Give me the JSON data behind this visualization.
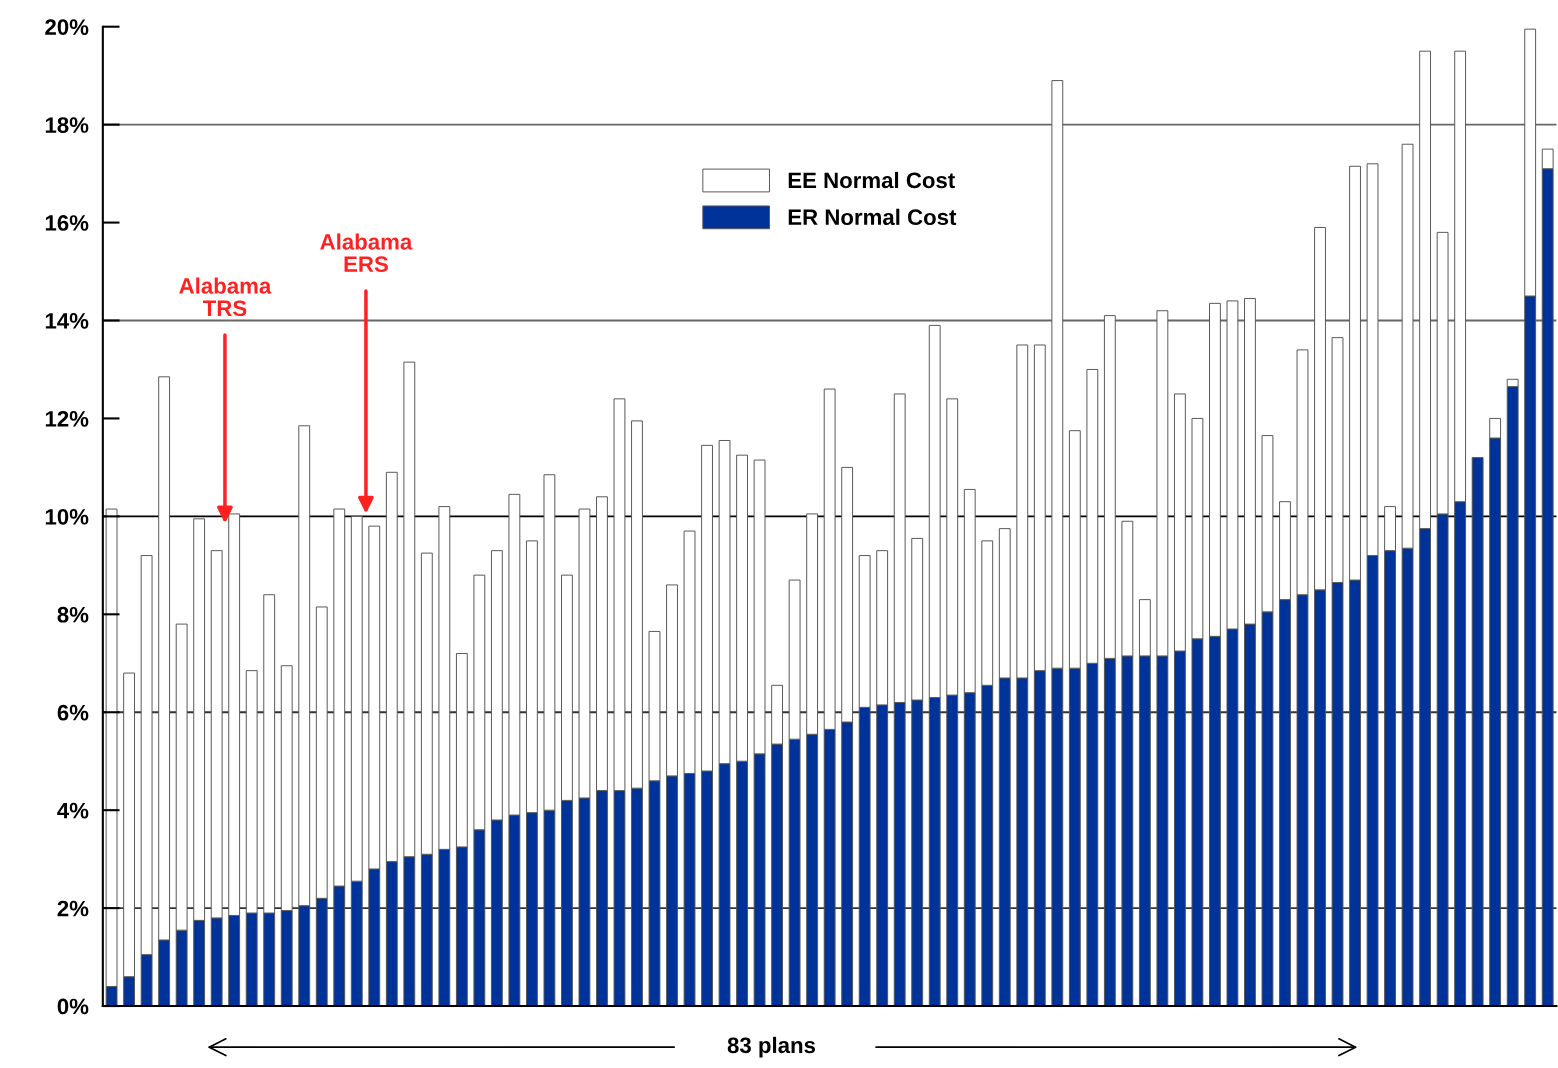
{
  "chart_data": {
    "type": "bar",
    "stacked": true,
    "relative": false,
    "categories": [
      null,
      null,
      null,
      null,
      null,
      null,
      null,
      null,
      null,
      null,
      null,
      null,
      null,
      null,
      null,
      null,
      null,
      null,
      null,
      null,
      null,
      null,
      null,
      null,
      null,
      null,
      null,
      null,
      null,
      null,
      null,
      null,
      null,
      null,
      null,
      null,
      null,
      null,
      null,
      null,
      null,
      null,
      null,
      null,
      null,
      null,
      null,
      null,
      null,
      null,
      null,
      null,
      null,
      null,
      null,
      null,
      null,
      null,
      null,
      null,
      null,
      null,
      null,
      null,
      null,
      null,
      null,
      null,
      null,
      null,
      null,
      null,
      null,
      null,
      null,
      null,
      null,
      null,
      null,
      null,
      null,
      null,
      null
    ],
    "series": [
      {
        "name": "ER Normal Cost",
        "color": "#003399",
        "values": [
          0.4,
          0.6,
          1.05,
          1.35,
          1.55,
          1.75,
          1.8,
          1.85,
          1.9,
          1.9,
          1.95,
          2.05,
          2.2,
          2.45,
          2.55,
          2.8,
          2.95,
          3.05,
          3.1,
          3.2,
          3.25,
          3.6,
          3.8,
          3.9,
          3.95,
          4.0,
          4.2,
          4.25,
          4.4,
          4.4,
          4.45,
          4.6,
          4.7,
          4.75,
          4.8,
          4.95,
          5.0,
          5.15,
          5.35,
          5.45,
          5.55,
          5.65,
          5.8,
          6.1,
          6.15,
          6.2,
          6.25,
          6.3,
          6.35,
          6.4,
          6.55,
          6.7,
          6.7,
          6.85,
          6.9,
          6.9,
          7.0,
          7.1,
          7.15,
          7.15,
          7.15,
          7.25,
          7.5,
          7.55,
          7.7,
          7.8,
          8.05,
          8.3,
          8.4,
          8.5,
          8.65,
          8.7,
          9.2,
          9.3,
          9.35,
          9.75,
          10.05,
          10.3,
          11.2,
          11.6,
          12.65,
          14.5,
          17.1
        ]
      },
      {
        "name": "EE Normal Cost",
        "color": "#ffffff",
        "values": [
          9.75,
          6.2,
          8.15,
          11.5,
          6.25,
          8.2,
          7.5,
          8.2,
          4.95,
          6.5,
          5.0,
          9.8,
          5.95,
          7.7,
          7.45,
          7.0,
          7.95,
          10.1,
          6.15,
          7.0,
          3.95,
          5.2,
          5.5,
          6.55,
          5.55,
          6.85,
          4.6,
          5.9,
          6.0,
          8.0,
          7.5,
          3.05,
          3.9,
          4.95,
          6.65,
          6.6,
          6.25,
          6.0,
          1.2,
          3.25,
          4.5,
          6.95,
          5.2,
          3.1,
          3.15,
          6.3,
          3.3,
          7.6,
          6.05,
          4.15,
          2.95,
          3.05,
          6.8,
          6.65,
          12.0,
          4.85,
          6.0,
          7.0,
          2.75,
          1.15,
          7.05,
          5.25,
          4.5,
          6.8,
          6.7,
          6.65,
          3.6,
          2.0,
          5.0,
          7.4,
          5.0,
          8.45,
          8.0,
          0.9,
          8.25,
          9.75,
          5.75,
          9.2,
          null,
          0.4,
          0.15,
          5.45,
          0.4
        ]
      }
    ],
    "ylim": [
      0,
      20
    ],
    "yticks": [
      {
        "value": 0,
        "label": "0%"
      },
      {
        "value": 2,
        "label": "2%"
      },
      {
        "value": 4,
        "label": "4%"
      },
      {
        "value": 6,
        "label": "6%"
      },
      {
        "value": 8,
        "label": "8%"
      },
      {
        "value": 10,
        "label": "10%"
      },
      {
        "value": 12,
        "label": "12%"
      },
      {
        "value": 14,
        "label": "14%"
      },
      {
        "value": 16,
        "label": "16%"
      },
      {
        "value": 18,
        "label": "18%"
      },
      {
        "value": 20,
        "label": "20%"
      }
    ],
    "ref_lines": [
      {
        "axis": "y",
        "value": 2,
        "color": "#333333"
      },
      {
        "axis": "y",
        "value": 6,
        "color": "#333333"
      },
      {
        "axis": "y",
        "value": 10,
        "color": "#000000"
      },
      {
        "axis": "y",
        "value": 14,
        "color": "#666666"
      },
      {
        "axis": "y",
        "value": 18,
        "color": "#666666"
      }
    ],
    "grid": false,
    "legend": "top",
    "annotations": [
      "Alabama\nTRS",
      "Alabama\nERS",
      "83 plans"
    ]
  }
}
